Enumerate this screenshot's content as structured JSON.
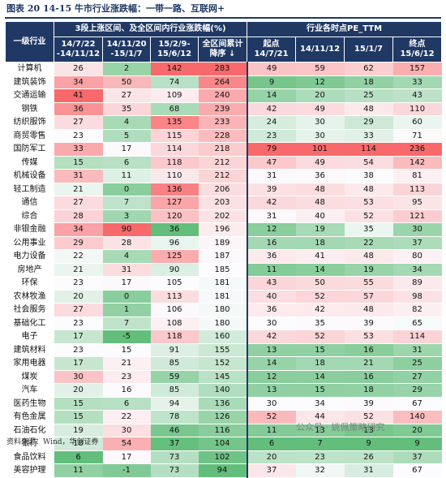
{
  "caption": "图表 20   14-15 牛市行业涨跌幅：一带一路、互联网+",
  "source": "资料来源：Wind，华创证券",
  "watermark": "公众号 · 姚佩策略研究",
  "headers": {
    "industry": "一级行业",
    "group1": "3段上涨区间、及全区间内行业涨跌幅(%)",
    "group2": "行业各时点PE_TTM",
    "cols": [
      "14/7/22\n-14/11/12",
      "14/11/20\n-15/1/7",
      "15/2/9-\n15/6/12",
      "全区间累计\n降序 ↓",
      "起点\n14/7/21",
      "14/11/12",
      "15/1/7",
      "终点\n15/6/12"
    ]
  },
  "rows": [
    {
      "name": "计算机",
      "v": [
        26,
        2,
        142,
        283,
        49,
        59,
        62,
        157
      ]
    },
    {
      "name": "建筑装饰",
      "v": [
        34,
        50,
        74,
        264,
        9,
        12,
        18,
        33
      ]
    },
    {
      "name": "交通运输",
      "v": [
        41,
        27,
        109,
        240,
        14,
        20,
        25,
        43
      ]
    },
    {
      "name": "钢铁",
      "v": [
        36,
        35,
        68,
        239,
        42,
        49,
        48,
        110
      ]
    },
    {
      "name": "纺织服饰",
      "v": [
        27,
        4,
        135,
        233,
        24,
        30,
        29,
        60
      ]
    },
    {
      "name": "商贸零售",
      "v": [
        23,
        5,
        115,
        228,
        23,
        30,
        33,
        71
      ]
    },
    {
      "name": "国防军工",
      "v": [
        33,
        17,
        114,
        218,
        79,
        101,
        114,
        236
      ]
    },
    {
      "name": "传媒",
      "v": [
        15,
        6,
        118,
        212,
        47,
        49,
        54,
        142
      ]
    },
    {
      "name": "机械设备",
      "v": [
        31,
        11,
        110,
        212,
        31,
        36,
        38,
        81
      ]
    },
    {
      "name": "轻工制造",
      "v": [
        21,
        0,
        136,
        206,
        39,
        48,
        48,
        113
      ]
    },
    {
      "name": "通信",
      "v": [
        27,
        7,
        127,
        203,
        42,
        48,
        53,
        95
      ]
    },
    {
      "name": "综合",
      "v": [
        28,
        3,
        120,
        202,
        31,
        40,
        52,
        121
      ]
    },
    {
      "name": "非银金融",
      "v": [
        34,
        90,
        36,
        196,
        12,
        19,
        35,
        30
      ]
    },
    {
      "name": "公用事业",
      "v": [
        29,
        28,
        96,
        189,
        16,
        18,
        22,
        37
      ]
    },
    {
      "name": "电力设备",
      "v": [
        22,
        4,
        125,
        187,
        36,
        41,
        48,
        80
      ]
    },
    {
      "name": "房地产",
      "v": [
        21,
        31,
        90,
        185,
        11,
        14,
        19,
        34
      ]
    },
    {
      "name": "环保",
      "v": [
        23,
        17,
        105,
        181,
        43,
        50,
        55,
        89
      ]
    },
    {
      "name": "农林牧渔",
      "v": [
        20,
        0,
        113,
        181,
        40,
        52,
        57,
        98
      ]
    },
    {
      "name": "社会服务",
      "v": [
        27,
        1,
        106,
        180,
        36,
        42,
        48,
        82
      ]
    },
    {
      "name": "基础化工",
      "v": [
        23,
        7,
        108,
        180,
        30,
        35,
        39,
        65
      ]
    },
    {
      "name": "电子",
      "v": [
        17,
        -5,
        118,
        160,
        42,
        52,
        53,
        114
      ]
    },
    {
      "name": "建筑材料",
      "v": [
        23,
        15,
        91,
        155,
        13,
        15,
        16,
        31
      ]
    },
    {
      "name": "家用电器",
      "v": [
        17,
        21,
        85,
        152,
        14,
        18,
        21,
        25
      ]
    },
    {
      "name": "煤炭",
      "v": [
        30,
        23,
        59,
        145,
        12,
        14,
        16,
        27
      ]
    },
    {
      "name": "汽车",
      "v": [
        20,
        16,
        85,
        140,
        13,
        15,
        18,
        29
      ]
    },
    {
      "name": "医药生物",
      "v": [
        15,
        6,
        94,
        136,
        30,
        34,
        39,
        67
      ]
    },
    {
      "name": "有色金属",
      "v": [
        15,
        22,
        78,
        126,
        52,
        44,
        52,
        140
      ]
    },
    {
      "name": "石油石化",
      "v": [
        19,
        30,
        46,
        116,
        11,
        13,
        13,
        20
      ]
    },
    {
      "name": "银行",
      "v": [
        18,
        54,
        37,
        104,
        6,
        7,
        9,
        9
      ]
    },
    {
      "name": "食品饮料",
      "v": [
        6,
        17,
        73,
        102,
        20,
        23,
        26,
        37
      ]
    },
    {
      "name": "美容护理",
      "v": [
        11,
        -1,
        73,
        94,
        37,
        32,
        31,
        67
      ]
    }
  ]
}
